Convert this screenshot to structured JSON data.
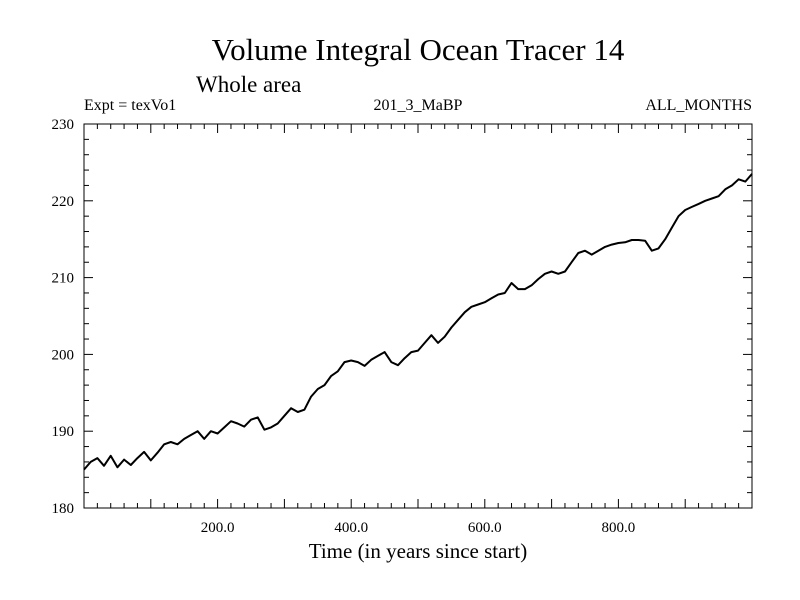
{
  "chart_data": {
    "type": "line",
    "title": "Volume Integral Ocean Tracer 14",
    "subtitle": "Whole area",
    "annotations": {
      "left": "Expt = texVo1",
      "center": "201_3_MaBP",
      "right": "ALL_MONTHS"
    },
    "xlabel": "Time (in years since start)",
    "ylabel": "",
    "xlim": [
      0,
      1000
    ],
    "ylim": [
      180,
      230
    ],
    "x_ticks": [
      200,
      400,
      600,
      800
    ],
    "x_tick_labels": [
      "200.0",
      "400.0",
      "600.0",
      "800.0"
    ],
    "y_ticks": [
      180,
      190,
      200,
      210,
      220,
      230
    ],
    "y_tick_labels": [
      "180",
      "190",
      "200",
      "210",
      "220",
      "230"
    ],
    "grid": false,
    "series": [
      {
        "name": "Tracer 14",
        "x": [
          0,
          10,
          20,
          30,
          40,
          50,
          60,
          70,
          80,
          90,
          100,
          110,
          120,
          130,
          140,
          150,
          160,
          170,
          180,
          190,
          200,
          210,
          220,
          230,
          240,
          250,
          260,
          270,
          280,
          290,
          300,
          310,
          320,
          330,
          340,
          350,
          360,
          370,
          380,
          390,
          400,
          410,
          420,
          430,
          440,
          450,
          460,
          470,
          480,
          490,
          500,
          510,
          520,
          530,
          540,
          550,
          560,
          570,
          580,
          590,
          600,
          610,
          620,
          630,
          640,
          650,
          660,
          670,
          680,
          690,
          700,
          710,
          720,
          730,
          740,
          750,
          760,
          770,
          780,
          790,
          800,
          810,
          820,
          830,
          840,
          850,
          860,
          870,
          880,
          890,
          900,
          910,
          920,
          930,
          940,
          950,
          960,
          970,
          980,
          990,
          1000
        ],
        "values": [
          185.0,
          186.0,
          186.5,
          185.5,
          186.8,
          185.3,
          186.3,
          185.6,
          186.5,
          187.3,
          186.2,
          187.2,
          188.3,
          188.6,
          188.3,
          189.0,
          189.5,
          190.0,
          189.0,
          190.0,
          189.7,
          190.5,
          191.3,
          191.0,
          190.6,
          191.5,
          191.8,
          190.2,
          190.5,
          191.0,
          192.0,
          193.0,
          192.5,
          192.8,
          194.5,
          195.5,
          196.0,
          197.2,
          197.8,
          199.0,
          199.2,
          199.0,
          198.5,
          199.3,
          199.8,
          200.3,
          199.0,
          198.6,
          199.5,
          200.3,
          200.5,
          201.5,
          202.5,
          201.5,
          202.3,
          203.5,
          204.5,
          205.5,
          206.2,
          206.5,
          206.8,
          207.3,
          207.8,
          208.0,
          209.3,
          208.5,
          208.5,
          209.0,
          209.8,
          210.5,
          210.8,
          210.5,
          210.8,
          212.0,
          213.2,
          213.5,
          213.0,
          213.5,
          214.0,
          214.3,
          214.5,
          214.6,
          214.9,
          214.9,
          214.8,
          213.5,
          213.8,
          215.0,
          216.5,
          218.0,
          218.8,
          219.2,
          219.6,
          220.0,
          220.3,
          220.6,
          221.5,
          222.0,
          222.8,
          222.5,
          223.5
        ]
      }
    ]
  }
}
